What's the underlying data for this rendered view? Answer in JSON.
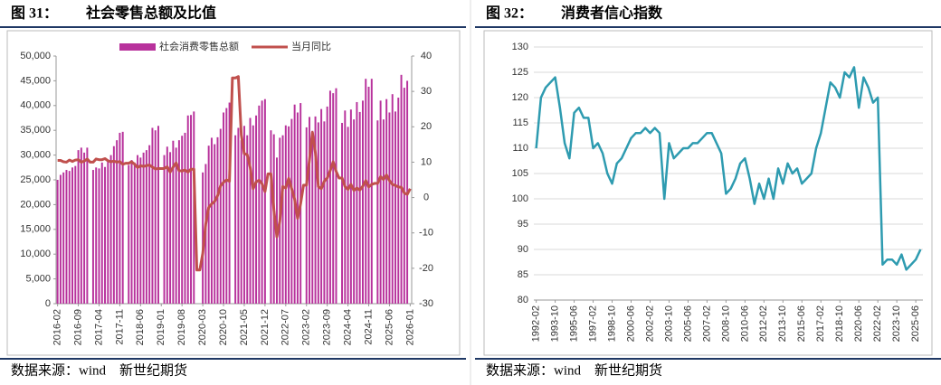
{
  "chart_data": [
    {
      "type": "combo",
      "figure_label": "图 31：",
      "title": "社会零售总额及比值",
      "source": "数据来源：wind　新世纪期货",
      "legend": "top",
      "grid": false,
      "categories": [
        "2016-02",
        null,
        null,
        null,
        null,
        null,
        null,
        "2016-09",
        null,
        null,
        null,
        null,
        null,
        null,
        "2017-04",
        null,
        null,
        null,
        null,
        null,
        null,
        "2017-11",
        null,
        null,
        null,
        null,
        null,
        null,
        "2018-06",
        null,
        null,
        null,
        null,
        null,
        null,
        "2019-01",
        null,
        null,
        null,
        null,
        null,
        null,
        "2019-08",
        null,
        null,
        null,
        null,
        null,
        null,
        "2020-03",
        null,
        null,
        null,
        null,
        null,
        null,
        "2020-10",
        null,
        null,
        null,
        null,
        null,
        null,
        "2021-05",
        null,
        null,
        null,
        null,
        null,
        null,
        "2021-12",
        null,
        null,
        null,
        null,
        null,
        null,
        "2022-07",
        null,
        null,
        null,
        null,
        null,
        null,
        "2023-02",
        null,
        null,
        null,
        null,
        null,
        null,
        "2023-09",
        null,
        null,
        null,
        null,
        null,
        null,
        "2024-04",
        null,
        null,
        null,
        null,
        null,
        null,
        "2024-11",
        null,
        null,
        null,
        null,
        null,
        null,
        "2025-06",
        null,
        null,
        null,
        null,
        null,
        null,
        "2026-01"
      ],
      "series": [
        {
          "name": "社会消费零售总额",
          "type": "bar",
          "color": "#b8329c",
          "values": [
            25000,
            26000,
            26500,
            27000,
            26800,
            27500,
            27800,
            31000,
            31500,
            30500,
            31500,
            null,
            27000,
            27500,
            27300,
            28500,
            27600,
            29000,
            30000,
            31800,
            33000,
            34500,
            34700,
            null,
            28000,
            29000,
            28500,
            30000,
            29500,
            30500,
            31000,
            32000,
            35500,
            35000,
            35900,
            null,
            30000,
            31700,
            30600,
            32900,
            31500,
            33000,
            33900,
            34500,
            38000,
            38100,
            38800,
            null,
            null,
            26500,
            28200,
            31900,
            33500,
            32200,
            33600,
            35300,
            38600,
            39500,
            40600,
            null,
            34000,
            35500,
            33000,
            35900,
            34000,
            37500,
            36000,
            38000,
            40000,
            41000,
            41300,
            null,
            35000,
            34200,
            29500,
            33500,
            34000,
            36000,
            35800,
            37300,
            40200,
            38600,
            40500,
            null,
            35600,
            37700,
            34900,
            37800,
            36600,
            39300,
            36800,
            39800,
            43000,
            42500,
            43500,
            null,
            36500,
            39000,
            35700,
            39200,
            37200,
            40700,
            38700,
            41000,
            45400,
            43800,
            45400,
            null,
            37000,
            41000,
            37200,
            41300,
            38600,
            42300,
            38800,
            41600,
            46200,
            43600,
            45000,
            null
          ]
        },
        {
          "name": "当月同比",
          "type": "line",
          "axis": "y2",
          "color": "#c0504d",
          "values": [
            10.5,
            10.5,
            10.1,
            10,
            10.6,
            10.2,
            10.6,
            10.7,
            10,
            10.3,
            10.9,
            10,
            10,
            10.9,
            10.7,
            10.7,
            11,
            10.4,
            10.1,
            10.3,
            10,
            10.2,
            9.4,
            9.7,
            9.7,
            10.1,
            9.4,
            8.5,
            9,
            8.8,
            9,
            9.2,
            8.6,
            8.1,
            8.2,
            8.2,
            8.2,
            8.7,
            7.2,
            8.6,
            9.8,
            7.6,
            7.5,
            7.8,
            7.2,
            8,
            8,
            -20.5,
            -20.5,
            -15.8,
            -7.5,
            -2.8,
            -1.8,
            -1.1,
            0.5,
            3.3,
            4.3,
            5,
            4.6,
            33.8,
            33.8,
            34.2,
            17.7,
            12.4,
            12.1,
            8.5,
            2.5,
            4.4,
            4.9,
            3.9,
            1.7,
            6.7,
            6.7,
            -3.5,
            -11.1,
            -6.7,
            3.1,
            2.7,
            5.4,
            2.5,
            -0.5,
            -5.9,
            -1.8,
            3.5,
            3.5,
            10.6,
            18.4,
            12.7,
            3.1,
            2.5,
            4.6,
            5.5,
            7.6,
            10.1,
            7.4,
            5.5,
            5.5,
            3.1,
            2.3,
            3.7,
            2,
            2.7,
            2.1,
            3.2,
            4.8,
            3,
            3.7,
            4,
            4,
            5.9,
            5.1,
            6.4,
            4.8,
            3.7,
            3.4,
            3,
            2.9,
            1.3,
            0.9,
            2.5
          ]
        }
      ],
      "ylim": [
        0,
        50000
      ],
      "yticks": [
        0,
        {
          "value": 5000,
          "label": "5,000"
        },
        {
          "value": 10000,
          "label": "10,000"
        },
        {
          "value": 15000,
          "label": "15,000"
        },
        {
          "value": 20000,
          "label": "20,000"
        },
        {
          "value": 25000,
          "label": "25,000"
        },
        {
          "value": 30000,
          "label": "30,000"
        },
        {
          "value": 35000,
          "label": "35,000"
        },
        {
          "value": 40000,
          "label": "40,000"
        },
        {
          "value": 45000,
          "label": "45,000"
        },
        {
          "value": 50000,
          "label": "50,000"
        }
      ],
      "y2lim": [
        -30,
        40
      ],
      "y2ticks": [
        -30,
        -20,
        -10,
        0,
        10,
        20,
        30,
        40
      ]
    },
    {
      "type": "line",
      "figure_label": "图 32：",
      "title": "消费者信心指数",
      "source": "数据来源：wind　新世纪期货",
      "grid": true,
      "color": "#2e9bb0",
      "categories": [
        "1992-02",
        null,
        null,
        null,
        "1993-10",
        null,
        null,
        null,
        "1995-06",
        null,
        null,
        null,
        "1997-02",
        null,
        null,
        null,
        "1998-10",
        null,
        null,
        null,
        "2000-06",
        null,
        null,
        null,
        "2002-02",
        null,
        null,
        null,
        "2003-10",
        null,
        null,
        null,
        "2005-06",
        null,
        null,
        null,
        "2007-02",
        null,
        null,
        null,
        "2008-10",
        null,
        null,
        null,
        "2010-06",
        null,
        null,
        null,
        "2012-02",
        null,
        null,
        null,
        "2013-10",
        null,
        null,
        null,
        "2015-06",
        null,
        null,
        null,
        "2017-02",
        null,
        null,
        null,
        "2018-10",
        null,
        null,
        null,
        "2020-06",
        null,
        null,
        null,
        "2022-02",
        null,
        null,
        null,
        "2023-10",
        null,
        null,
        null,
        "2025-06",
        null
      ],
      "values": [
        110,
        120,
        122,
        123,
        124,
        118,
        111,
        108,
        117,
        118,
        116,
        116,
        110,
        111,
        109,
        105,
        103,
        107,
        108,
        110,
        112,
        113,
        113,
        114,
        113,
        114,
        113,
        100,
        111,
        108,
        109,
        110,
        110,
        111,
        111,
        112,
        113,
        113,
        111,
        109,
        101,
        102,
        104,
        107,
        108,
        104,
        99,
        103,
        100,
        104,
        100,
        106,
        103,
        107,
        105,
        106,
        103,
        104,
        105,
        110,
        113,
        118,
        123,
        122,
        120,
        125,
        124,
        126,
        118,
        124,
        122,
        119,
        120,
        87,
        88,
        88,
        87,
        89,
        86,
        87,
        88,
        90
      ],
      "ylim": [
        80,
        130
      ],
      "yticks": [
        80,
        85,
        90,
        95,
        100,
        105,
        110,
        115,
        120,
        125,
        130
      ]
    }
  ]
}
